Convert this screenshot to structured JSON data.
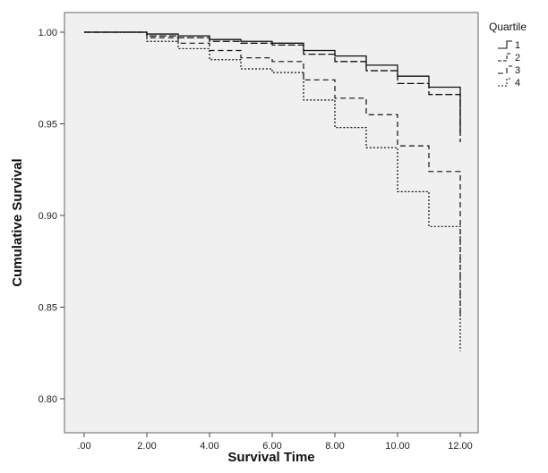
{
  "chart_data": {
    "type": "line",
    "xlabel": "Survival Time",
    "ylabel": "Cumulative Survival",
    "xlim": [
      0,
      12
    ],
    "ylim": [
      0.8,
      1.0
    ],
    "x_ticks": [
      ".00",
      "2.00",
      "4.00",
      "6.00",
      "8.00",
      "10.00",
      "12.00"
    ],
    "y_ticks": [
      "0.80",
      "0.85",
      "0.90",
      "0.95",
      "1.00"
    ],
    "grid": false,
    "legend": {
      "title": "Quartile",
      "placement": "right"
    },
    "series": [
      {
        "name": "1",
        "style": "solid",
        "x": [
          0,
          2,
          3,
          4,
          5,
          6,
          7,
          8,
          9,
          10,
          11,
          12,
          12
        ],
        "y": [
          1.0,
          0.999,
          0.998,
          0.996,
          0.995,
          0.994,
          0.99,
          0.987,
          0.982,
          0.976,
          0.97,
          0.97,
          0.945
        ]
      },
      {
        "name": "2",
        "style": "dashed",
        "x": [
          0,
          2,
          3,
          4,
          5,
          6,
          7,
          8,
          9,
          10,
          11,
          12,
          12
        ],
        "y": [
          1.0,
          0.998,
          0.997,
          0.995,
          0.994,
          0.993,
          0.988,
          0.984,
          0.979,
          0.972,
          0.966,
          0.966,
          0.94
        ]
      },
      {
        "name": "3",
        "style": "dashed-long",
        "x": [
          0,
          2,
          3,
          4,
          5,
          6,
          7,
          8,
          9,
          10,
          11,
          12,
          12
        ],
        "y": [
          1.0,
          0.997,
          0.994,
          0.99,
          0.986,
          0.984,
          0.974,
          0.964,
          0.955,
          0.938,
          0.924,
          0.924,
          0.845
        ]
      },
      {
        "name": "4",
        "style": "dotted",
        "x": [
          0,
          2,
          3,
          4,
          5,
          6,
          7,
          8,
          9,
          10,
          11,
          12,
          12
        ],
        "y": [
          1.0,
          0.995,
          0.991,
          0.985,
          0.98,
          0.978,
          0.963,
          0.948,
          0.937,
          0.913,
          0.894,
          0.894,
          0.826
        ]
      }
    ]
  },
  "colors": {
    "plot_background": "#f0f0f0",
    "line": "#111111"
  }
}
